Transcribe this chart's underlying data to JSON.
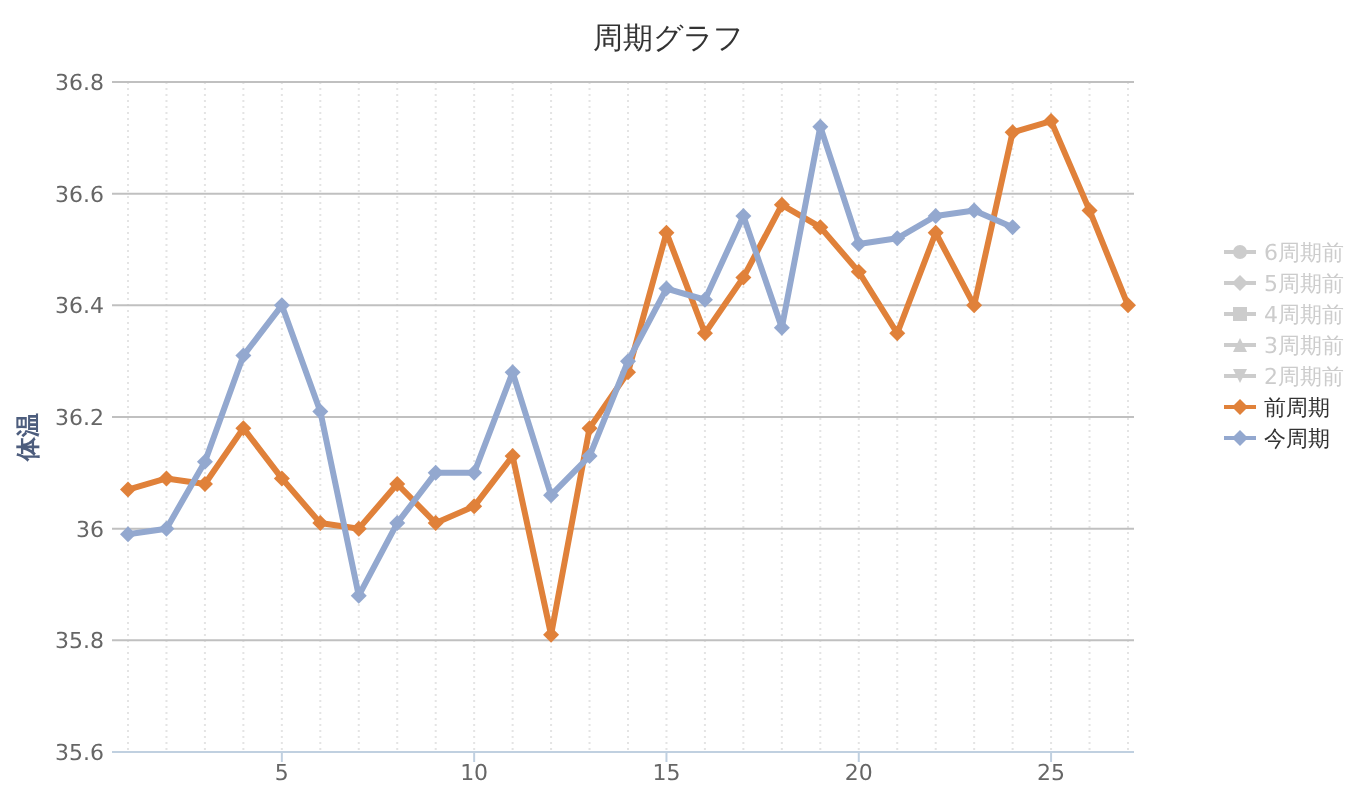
{
  "chart_data": {
    "type": "line",
    "title": "周期グラフ",
    "ylabel": "体温",
    "x": [
      1,
      2,
      3,
      4,
      5,
      6,
      7,
      8,
      9,
      10,
      11,
      12,
      13,
      14,
      15,
      16,
      17,
      18,
      19,
      20,
      21,
      22,
      23,
      24,
      25,
      26,
      27
    ],
    "xlim": [
      1,
      27
    ],
    "xticks": [
      5,
      10,
      15,
      20,
      25
    ],
    "ylim": [
      35.6,
      36.8
    ],
    "yticks": [
      35.6,
      35.8,
      36,
      36.2,
      36.4,
      36.6,
      36.8
    ],
    "grid": true,
    "legend": "right",
    "line_style": "solid",
    "series": [
      {
        "name": "6周期前",
        "color": "#cccccc",
        "marker": "circle",
        "values": [
          null,
          null,
          null,
          null,
          null,
          null,
          null,
          null,
          null,
          null,
          null,
          null,
          null,
          null,
          null,
          null,
          null,
          null,
          null,
          null,
          null,
          null,
          null,
          null,
          null,
          null,
          null
        ]
      },
      {
        "name": "5周期前",
        "color": "#cccccc",
        "marker": "diamond",
        "values": [
          null,
          null,
          null,
          null,
          null,
          null,
          null,
          null,
          null,
          null,
          null,
          null,
          null,
          null,
          null,
          null,
          null,
          null,
          null,
          null,
          null,
          null,
          null,
          null,
          null,
          null,
          null
        ]
      },
      {
        "name": "4周期前",
        "color": "#cccccc",
        "marker": "square",
        "values": [
          null,
          null,
          null,
          null,
          null,
          null,
          null,
          null,
          null,
          null,
          null,
          null,
          null,
          null,
          null,
          null,
          null,
          null,
          null,
          null,
          null,
          null,
          null,
          null,
          null,
          null,
          null
        ]
      },
      {
        "name": "3周期前",
        "color": "#cccccc",
        "marker": "triangle",
        "values": [
          null,
          null,
          null,
          null,
          null,
          null,
          null,
          null,
          null,
          null,
          null,
          null,
          null,
          null,
          null,
          null,
          null,
          null,
          null,
          null,
          null,
          null,
          null,
          null,
          null,
          null,
          null
        ]
      },
      {
        "name": "2周期前",
        "color": "#cccccc",
        "marker": "triangle-down",
        "values": [
          null,
          null,
          null,
          null,
          null,
          null,
          null,
          null,
          null,
          null,
          null,
          null,
          null,
          null,
          null,
          null,
          null,
          null,
          null,
          null,
          null,
          null,
          null,
          null,
          null,
          null,
          null
        ]
      },
      {
        "name": "前周期",
        "color": "#e0813a",
        "marker": "diamond",
        "values": [
          36.07,
          36.09,
          36.08,
          36.18,
          36.09,
          36.01,
          36.0,
          36.08,
          36.01,
          36.04,
          36.13,
          35.81,
          36.18,
          36.28,
          36.53,
          36.35,
          36.45,
          36.58,
          36.54,
          36.46,
          36.35,
          36.53,
          36.4,
          36.71,
          36.73,
          36.57,
          36.4
        ]
      },
      {
        "name": "今周期",
        "color": "#93a8cf",
        "marker": "diamond",
        "values": [
          35.99,
          36.0,
          36.12,
          36.31,
          36.4,
          36.21,
          35.88,
          36.01,
          36.1,
          36.1,
          36.28,
          36.06,
          36.13,
          36.3,
          36.43,
          36.41,
          36.56,
          36.36,
          36.72,
          36.51,
          36.52,
          36.56,
          36.57,
          36.54,
          null,
          null,
          null
        ]
      }
    ]
  }
}
